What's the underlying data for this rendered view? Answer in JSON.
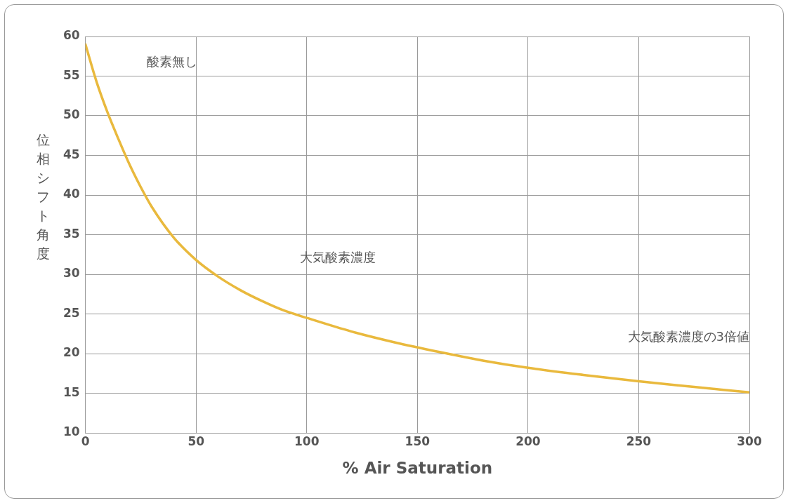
{
  "chart_data": {
    "type": "line",
    "xlabel": "% Air Saturation",
    "ylabel": "位相シフト角度",
    "x": [
      0,
      5,
      10,
      15,
      20,
      25,
      30,
      40,
      50,
      60,
      70,
      80,
      90,
      100,
      120,
      140,
      160,
      180,
      200,
      225,
      250,
      275,
      300
    ],
    "series": [
      {
        "color": "#e9b93d",
        "values": [
          59,
          54.3,
          50.4,
          47,
          43.8,
          41,
          38.5,
          34.6,
          31.8,
          29.7,
          28,
          26.6,
          25.4,
          24.5,
          22.8,
          21.4,
          20.2,
          19.1,
          18.2,
          17.3,
          16.5,
          15.8,
          15.1
        ]
      }
    ],
    "xlim": [
      0,
      300
    ],
    "xticks": [
      0,
      50,
      100,
      150,
      200,
      250,
      300
    ],
    "ylim": [
      10,
      60
    ],
    "yticks": [
      10,
      15,
      20,
      25,
      30,
      35,
      40,
      45,
      50,
      55,
      60
    ],
    "grid": true,
    "legend": false,
    "marker": "none",
    "line_style": "solid",
    "annotations": [
      "酸素無し",
      "大気酸素濃度",
      "大気酸素濃度の3倍値"
    ]
  }
}
